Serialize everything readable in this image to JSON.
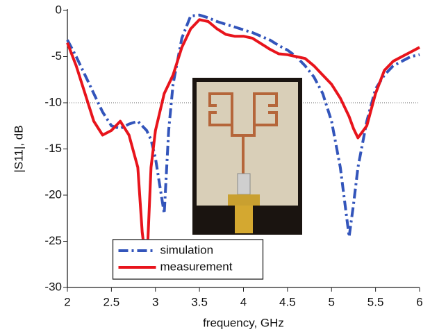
{
  "chart_data": {
    "type": "line",
    "x_label": "frequency, GHz",
    "y_label": "|S11|, dB",
    "x": [
      2,
      2.1,
      2.2,
      2.3,
      2.4,
      2.5,
      2.6,
      2.7,
      2.8,
      2.85,
      2.9,
      2.95,
      3,
      3.05,
      3.1,
      3.15,
      3.2,
      3.3,
      3.4,
      3.5,
      3.6,
      3.7,
      3.8,
      3.9,
      4,
      4.1,
      4.2,
      4.3,
      4.4,
      4.5,
      4.6,
      4.7,
      4.8,
      4.9,
      5,
      5.1,
      5.2,
      5.25,
      5.3,
      5.4,
      5.5,
      5.6,
      5.7,
      5.8,
      5.9,
      6
    ],
    "series": [
      {
        "name": "simulation",
        "color": "#3355bb",
        "dash": "dashdot",
        "values": [
          -3.2,
          -5,
          -7,
          -9,
          -11,
          -12.5,
          -12.8,
          -12.3,
          -12,
          -12.5,
          -13,
          -14,
          -16,
          -19,
          -22,
          -13,
          -8,
          -3,
          -0.6,
          -0.5,
          -0.8,
          -1.2,
          -1.5,
          -1.8,
          -2.1,
          -2.4,
          -2.8,
          -3.2,
          -3.8,
          -4.3,
          -5,
          -6,
          -7.2,
          -9,
          -12,
          -17,
          -24.5,
          -21,
          -17,
          -12,
          -8.5,
          -7,
          -6,
          -5.5,
          -5,
          -4.8
        ]
      },
      {
        "name": "measurement",
        "color": "#e8141c",
        "dash": "solid",
        "values": [
          -3.5,
          -6,
          -9,
          -12,
          -13.5,
          -13,
          -12,
          -13.5,
          -17,
          -24,
          -28,
          -17,
          -13,
          -11,
          -9,
          -8,
          -7,
          -4,
          -2,
          -1,
          -1.2,
          -2,
          -2.6,
          -2.8,
          -2.8,
          -3,
          -3.6,
          -4.2,
          -4.7,
          -4.8,
          -5,
          -5.2,
          -6,
          -7,
          -8,
          -9.5,
          -11.5,
          -12.8,
          -13.8,
          -12.5,
          -9,
          -6.5,
          -5.5,
          -5,
          -4.5,
          -4
        ]
      }
    ],
    "reference_line": -10,
    "xlim": [
      2,
      6
    ],
    "xticks": [
      2,
      2.5,
      3,
      3.5,
      4,
      4.5,
      5,
      5.5,
      6
    ],
    "ylim": [
      -30,
      0
    ],
    "yticks": [
      0,
      -5,
      -10,
      -15,
      -20,
      -25,
      -30
    ],
    "legend_position": "lower center"
  }
}
